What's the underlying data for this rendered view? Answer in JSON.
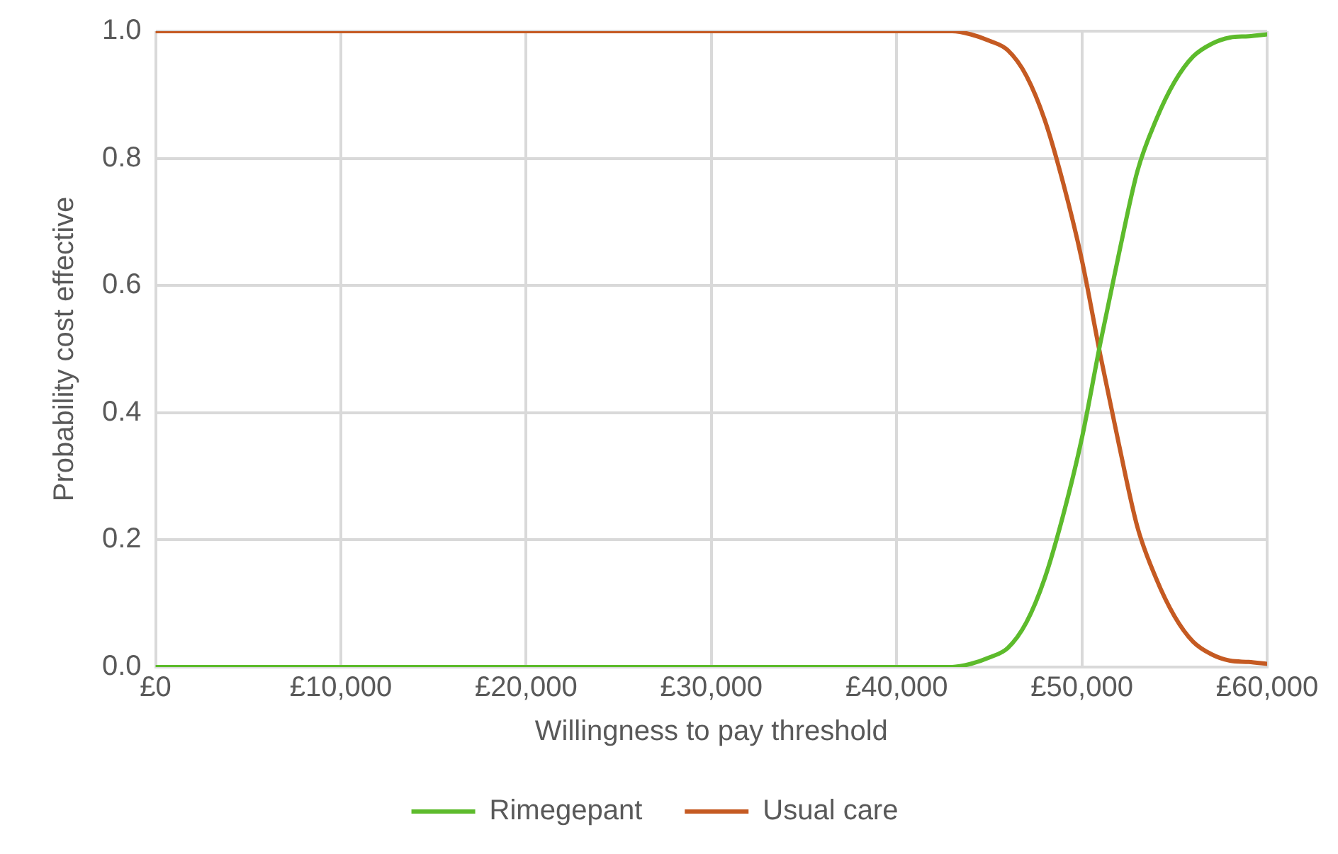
{
  "chart_data": {
    "type": "line",
    "xlabel": "Willingness to pay threshold",
    "ylabel": "Probability cost effective",
    "x": [
      0,
      43000,
      44000,
      45000,
      46000,
      47000,
      48000,
      49000,
      50000,
      51000,
      52000,
      53000,
      54000,
      55000,
      56000,
      57000,
      58000,
      59000,
      60000
    ],
    "series": [
      {
        "name": "Rimegepant",
        "color": "#5dbb2c",
        "values": [
          0,
          0,
          0.005,
          0.015,
          0.03,
          0.07,
          0.14,
          0.24,
          0.36,
          0.51,
          0.65,
          0.78,
          0.86,
          0.92,
          0.96,
          0.98,
          0.99,
          0.992,
          0.995
        ]
      },
      {
        "name": "Usual care",
        "color": "#c55a22",
        "values": [
          1,
          1,
          0.995,
          0.985,
          0.97,
          0.93,
          0.86,
          0.76,
          0.64,
          0.49,
          0.35,
          0.22,
          0.14,
          0.08,
          0.04,
          0.02,
          0.01,
          0.008,
          0.005
        ]
      }
    ],
    "xlim": [
      0,
      60000
    ],
    "xticks": [
      {
        "value": 0,
        "label": "£0"
      },
      {
        "value": 10000,
        "label": "£10,000"
      },
      {
        "value": 20000,
        "label": "£20,000"
      },
      {
        "value": 30000,
        "label": "£30,000"
      },
      {
        "value": 40000,
        "label": "£40,000"
      },
      {
        "value": 50000,
        "label": "£50,000"
      },
      {
        "value": 60000,
        "label": "£60,000"
      }
    ],
    "ylim": [
      0,
      1
    ],
    "yticks": [
      {
        "value": 0,
        "label": "0.0"
      },
      {
        "value": 0.2,
        "label": "0.2"
      },
      {
        "value": 0.4,
        "label": "0.4"
      },
      {
        "value": 0.6,
        "label": "0.6"
      },
      {
        "value": 0.8,
        "label": "0.8"
      },
      {
        "value": 1,
        "label": "1.0"
      }
    ],
    "grid": true,
    "legend": "bottom",
    "marker": "none",
    "line_style": "solid"
  }
}
